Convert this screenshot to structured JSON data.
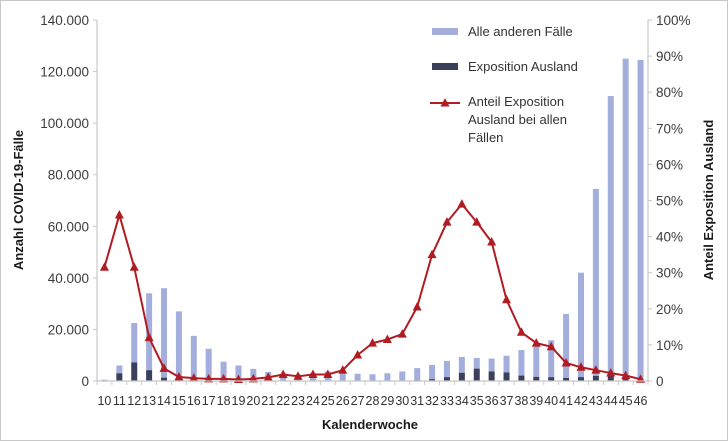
{
  "chart_data": {
    "type": "bar",
    "subtype": "stacked bar + line (dual axis)",
    "xlabel": "Kalenderwoche",
    "ylabel": "Anzahl COVID-19-Fälle",
    "y2label": "Anteil Exposition Ausland",
    "ylim": [
      0,
      140000
    ],
    "y2lim": [
      0,
      1
    ],
    "yticks": [
      "0",
      "20.000",
      "40.000",
      "60.000",
      "80.000",
      "100.000",
      "120.000",
      "140.000"
    ],
    "y2ticks": [
      "0",
      "10%",
      "20%",
      "30%",
      "40%",
      "50%",
      "60%",
      "70%",
      "80%",
      "90%",
      "100%"
    ],
    "grid": false,
    "legend_position": "top-right (inside)",
    "categories": [
      "10",
      "11",
      "12",
      "13",
      "14",
      "15",
      "16",
      "17",
      "18",
      "19",
      "20",
      "21",
      "22",
      "23",
      "24",
      "25",
      "26",
      "27",
      "28",
      "29",
      "30",
      "31",
      "32",
      "33",
      "34",
      "35",
      "36",
      "37",
      "38",
      "39",
      "40",
      "41",
      "42",
      "43",
      "44",
      "45",
      "46"
    ],
    "series": [
      {
        "name": "Exposition Ausland",
        "type": "bar-stacked",
        "color": "#3a3f5c",
        "values": [
          200,
          3000,
          7200,
          4200,
          1300,
          300,
          150,
          100,
          80,
          60,
          50,
          40,
          40,
          40,
          50,
          60,
          70,
          60,
          60,
          80,
          120,
          300,
          700,
          1500,
          3200,
          4800,
          3700,
          3300,
          2100,
          1600,
          1500,
          1200,
          1500,
          2000,
          2400,
          2000,
          700
        ]
      },
      {
        "name": "Alle anderen Fälle",
        "type": "bar-stacked",
        "color": "#a3aedd",
        "values": [
          300,
          3000,
          15300,
          29800,
          34700,
          26700,
          17350,
          12400,
          7420,
          5940,
          4650,
          3460,
          2660,
          2460,
          2950,
          3640,
          3930,
          2740,
          2540,
          2920,
          3580,
          4700,
          5500,
          6300,
          6100,
          4100,
          5000,
          6500,
          9900,
          12300,
          14300,
          24800,
          40500,
          72500,
          108100,
          123000,
          123800
        ]
      },
      {
        "name": "Anteil Exposition Ausland bei allen Fällen",
        "type": "line",
        "axis": "right",
        "color": "#b01c22",
        "marker": "triangle",
        "values": [
          0.315,
          0.46,
          0.315,
          0.12,
          0.035,
          0.011,
          0.008,
          0.006,
          0.006,
          0.004,
          0.006,
          0.01,
          0.018,
          0.013,
          0.018,
          0.018,
          0.03,
          0.072,
          0.105,
          0.115,
          0.13,
          0.205,
          0.35,
          0.44,
          0.49,
          0.44,
          0.385,
          0.225,
          0.135,
          0.105,
          0.095,
          0.05,
          0.038,
          0.03,
          0.022,
          0.015,
          0.005
        ]
      }
    ]
  },
  "legend": {
    "items": [
      {
        "label": "Alle anderen Fälle",
        "color": "#a3aedd",
        "kind": "bar"
      },
      {
        "label": "Exposition Ausland",
        "color": "#3a3f5c",
        "kind": "bar"
      },
      {
        "label_lines": [
          "Anteil Exposition",
          "Ausland bei allen",
          "Fällen"
        ],
        "color": "#b01c22",
        "kind": "line"
      }
    ]
  },
  "colors": {
    "axis": "#c8c8c8",
    "text": "#333333"
  }
}
